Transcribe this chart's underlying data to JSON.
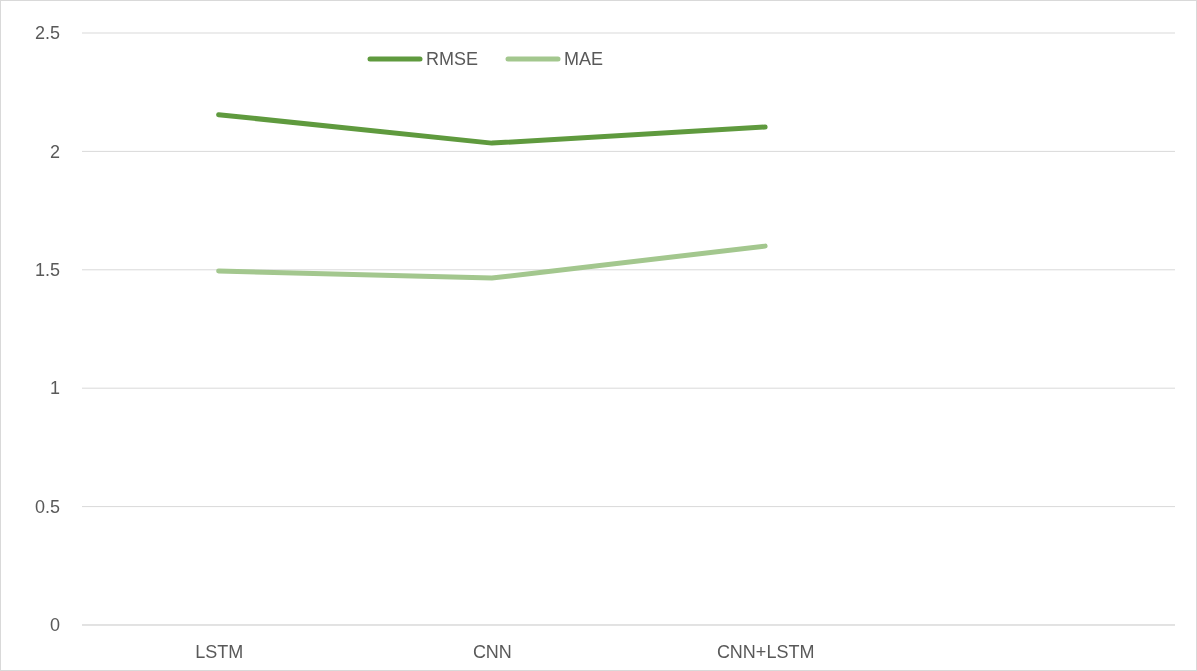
{
  "chart_data": {
    "type": "line",
    "categories": [
      "LSTM",
      "CNN",
      "CNN+LSTM",
      null
    ],
    "series": [
      {
        "name": "RMSE",
        "color": "#5f9a3e",
        "values": [
          2.155,
          2.035,
          2.103,
          null
        ]
      },
      {
        "name": "MAE",
        "color": "#a3c78e",
        "values": [
          1.495,
          1.465,
          1.6,
          null
        ]
      }
    ],
    "ylim": [
      0,
      2.5
    ],
    "yticks": [
      0,
      0.5,
      1,
      1.5,
      2,
      2.5
    ],
    "grid": "y",
    "legend": "top",
    "marker": "none",
    "line_style": "solid"
  }
}
